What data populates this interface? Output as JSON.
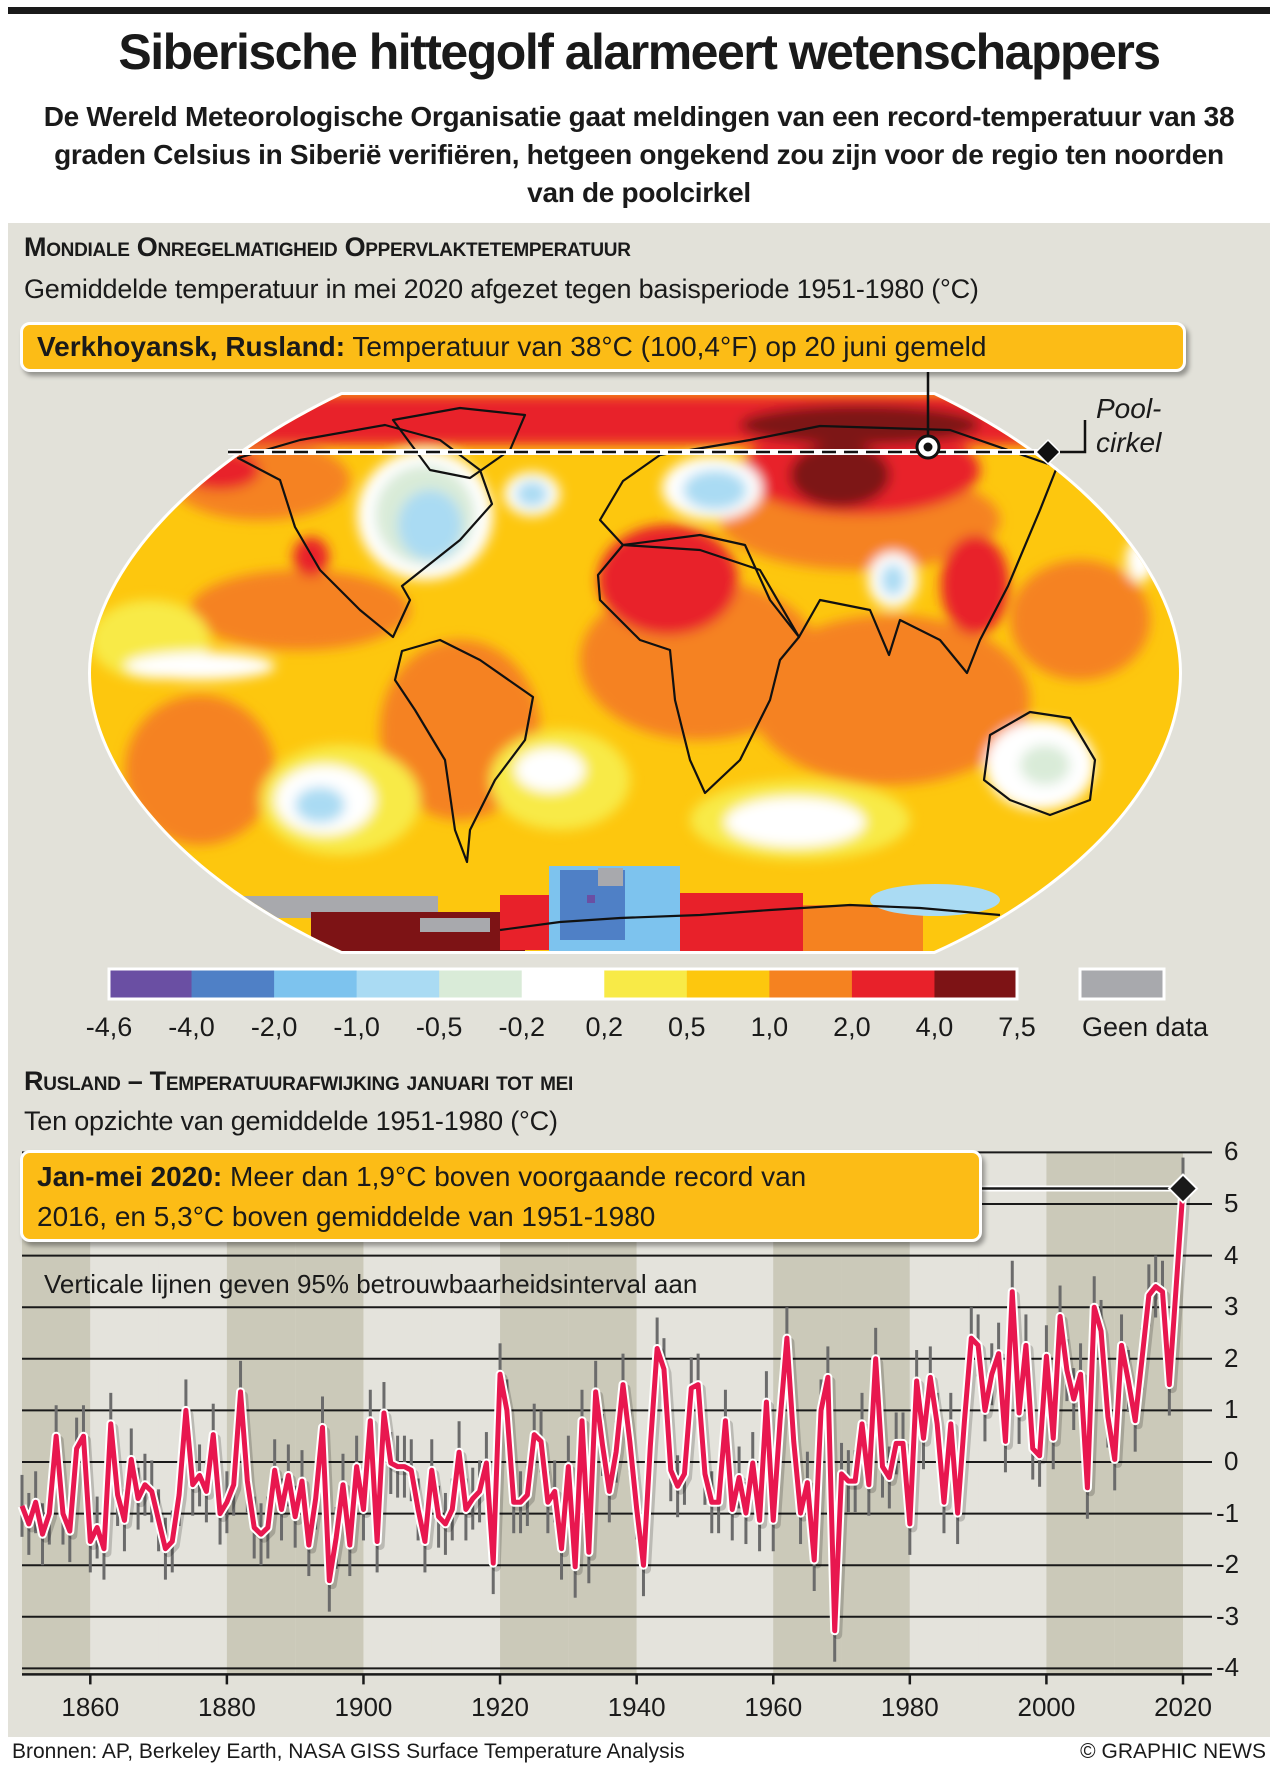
{
  "header": {
    "title": "Siberische hittegolf alarmeert wetenschappers",
    "subtitle": "De Wereld Meteorologische Organisatie gaat meldingen van een record-temperatuur van 38 graden Celsius in Siberië verifiëren, hetgeen ongekend zou zijn voor de regio ten noorden van de poolcirkel"
  },
  "map_section": {
    "heading": "Mondiale Onregelmatigheid Oppervlaktetemperatuur",
    "subheading": "Gemiddelde temperatuur in mei 2020 afgezet tegen basisperiode 1951-1980 (°C)",
    "callout_bold": "Verkhoyansk, Rusland:",
    "callout_text": " Temperatuur van 38°C (100,4°F) op 20 juni gemeld",
    "polar_label_1": "Pool-",
    "polar_label_2": "cirkel",
    "legend": {
      "boundaries": [
        "-4,6",
        "-4,0",
        "-2,0",
        "-1,0",
        "-0,5",
        "-0,2",
        "0,2",
        "0,5",
        "1,0",
        "2,0",
        "4,0",
        "7,5"
      ],
      "colors": [
        "#6a4fa3",
        "#4f80c6",
        "#7dc3ee",
        "#aadbf3",
        "#d9ebd8",
        "#ffffff",
        "#f8ea47",
        "#fdc70e",
        "#f58220",
        "#e8212a",
        "#7d1315"
      ],
      "no_data_color": "#a8a9ad",
      "no_data_label": "Geen data"
    }
  },
  "chart_section": {
    "heading": "Rusland – Temperatuurafwijking januari tot mei",
    "subheading": "Ten opzichte van gemiddelde 1951-1980 (°C)",
    "callout_bold": "Jan-mei 2020:",
    "callout_line1": " Meer dan 1,9°C boven voorgaande record van",
    "callout_line2": "2016, en 5,3°C boven gemiddelde van 1951-1980",
    "note": "Verticale lijnen geven 95% betrouwbaarheidsinterval aan"
  },
  "chart_data": {
    "type": "line",
    "title": "",
    "xlabel": "",
    "ylabel": "",
    "xlim": [
      1850,
      2020
    ],
    "ylim": [
      -4,
      6
    ],
    "x_ticks": [
      "1860",
      "1880",
      "1900",
      "1920",
      "1940",
      "1960",
      "1980",
      "2000",
      "2020"
    ],
    "y_ticks": [
      "6",
      "5",
      "4",
      "3",
      "2",
      "1",
      "0",
      "-1",
      "-2",
      "-3",
      "-4"
    ],
    "grid": true,
    "line_color": "#e8174f",
    "ci_95_halfwidth": 0.6,
    "highlight": {
      "x": 2020,
      "y": 5.3
    },
    "points": [
      [
        1850,
        -0.85
      ],
      [
        1851,
        -1.2
      ],
      [
        1852,
        -0.78
      ],
      [
        1853,
        -1.4
      ],
      [
        1854,
        -1.0
      ],
      [
        1855,
        0.5
      ],
      [
        1856,
        -1.0
      ],
      [
        1857,
        -1.34
      ],
      [
        1858,
        0.26
      ],
      [
        1859,
        0.5
      ],
      [
        1860,
        -1.54
      ],
      [
        1861,
        -1.27
      ],
      [
        1862,
        -1.68
      ],
      [
        1863,
        0.74
      ],
      [
        1864,
        -0.64
      ],
      [
        1865,
        -1.13
      ],
      [
        1866,
        0.05
      ],
      [
        1867,
        -0.71
      ],
      [
        1868,
        -0.44
      ],
      [
        1869,
        -0.57
      ],
      [
        1870,
        -1.13
      ],
      [
        1871,
        -1.68
      ],
      [
        1872,
        -1.54
      ],
      [
        1873,
        -0.64
      ],
      [
        1874,
        1.0
      ],
      [
        1875,
        -0.44
      ],
      [
        1876,
        -0.26
      ],
      [
        1877,
        -0.57
      ],
      [
        1878,
        0.53
      ],
      [
        1879,
        -1.0
      ],
      [
        1880,
        -0.78
      ],
      [
        1881,
        -0.44
      ],
      [
        1882,
        1.36
      ],
      [
        1883,
        -0.37
      ],
      [
        1884,
        -1.27
      ],
      [
        1885,
        -1.4
      ],
      [
        1886,
        -1.27
      ],
      [
        1887,
        -0.16
      ],
      [
        1888,
        -0.92
      ],
      [
        1889,
        -0.26
      ],
      [
        1890,
        -1.06
      ],
      [
        1891,
        -0.37
      ],
      [
        1892,
        -1.61
      ],
      [
        1893,
        -0.71
      ],
      [
        1894,
        0.67
      ],
      [
        1895,
        -2.3
      ],
      [
        1896,
        -1.47
      ],
      [
        1897,
        -0.44
      ],
      [
        1898,
        -1.61
      ],
      [
        1899,
        -0.09
      ],
      [
        1900,
        -0.92
      ],
      [
        1901,
        0.8
      ],
      [
        1902,
        -1.54
      ],
      [
        1903,
        0.95
      ],
      [
        1904,
        -0.02
      ],
      [
        1905,
        -0.09
      ],
      [
        1906,
        -0.09
      ],
      [
        1907,
        -0.16
      ],
      [
        1908,
        -0.92
      ],
      [
        1909,
        -1.54
      ],
      [
        1910,
        -0.16
      ],
      [
        1911,
        -1.06
      ],
      [
        1912,
        -1.2
      ],
      [
        1913,
        -0.92
      ],
      [
        1914,
        0.19
      ],
      [
        1915,
        -0.92
      ],
      [
        1916,
        -0.71
      ],
      [
        1917,
        -0.57
      ],
      [
        1918,
        -0.02
      ],
      [
        1919,
        -1.96
      ],
      [
        1920,
        1.7
      ],
      [
        1921,
        1.0
      ],
      [
        1922,
        -0.78
      ],
      [
        1923,
        -0.78
      ],
      [
        1924,
        -0.64
      ],
      [
        1925,
        0.53
      ],
      [
        1926,
        0.4
      ],
      [
        1927,
        -0.78
      ],
      [
        1928,
        -0.57
      ],
      [
        1929,
        -1.68
      ],
      [
        1930,
        -0.09
      ],
      [
        1931,
        -2.03
      ],
      [
        1932,
        0.8
      ],
      [
        1933,
        -1.75
      ],
      [
        1934,
        1.36
      ],
      [
        1935,
        0.33
      ],
      [
        1936,
        -0.57
      ],
      [
        1937,
        0.2
      ],
      [
        1938,
        1.5
      ],
      [
        1939,
        0.4
      ],
      [
        1940,
        -0.9
      ],
      [
        1941,
        -2.0
      ],
      [
        1942,
        0.3
      ],
      [
        1943,
        2.2
      ],
      [
        1944,
        1.8
      ],
      [
        1945,
        -0.16
      ],
      [
        1946,
        -0.47
      ],
      [
        1947,
        -0.23
      ],
      [
        1948,
        1.43
      ],
      [
        1949,
        1.5
      ],
      [
        1950,
        -0.23
      ],
      [
        1951,
        -0.78
      ],
      [
        1952,
        -0.78
      ],
      [
        1953,
        0.8
      ],
      [
        1954,
        -0.92
      ],
      [
        1955,
        -0.3
      ],
      [
        1956,
        -0.99
      ],
      [
        1957,
        -0.02
      ],
      [
        1958,
        -1.13
      ],
      [
        1959,
        1.16
      ],
      [
        1960,
        -1.13
      ],
      [
        1961,
        0.8
      ],
      [
        1962,
        2.4
      ],
      [
        1963,
        0.4
      ],
      [
        1964,
        -0.99
      ],
      [
        1965,
        -0.4
      ],
      [
        1966,
        -1.9
      ],
      [
        1967,
        1.0
      ],
      [
        1968,
        1.64
      ],
      [
        1969,
        -3.27
      ],
      [
        1970,
        -0.23
      ],
      [
        1971,
        -0.37
      ],
      [
        1972,
        -0.37
      ],
      [
        1973,
        0.74
      ],
      [
        1974,
        -0.44
      ],
      [
        1975,
        2.0
      ],
      [
        1976,
        -0.09
      ],
      [
        1977,
        -0.3
      ],
      [
        1978,
        0.36
      ],
      [
        1979,
        0.36
      ],
      [
        1980,
        -1.2
      ],
      [
        1981,
        1.57
      ],
      [
        1982,
        0.46
      ],
      [
        1983,
        1.64
      ],
      [
        1984,
        0.74
      ],
      [
        1985,
        -0.78
      ],
      [
        1986,
        0.74
      ],
      [
        1987,
        -0.99
      ],
      [
        1988,
        0.8
      ],
      [
        1989,
        2.4
      ],
      [
        1990,
        2.26
      ],
      [
        1991,
        1.0
      ],
      [
        1992,
        1.7
      ],
      [
        1993,
        2.1
      ],
      [
        1994,
        0.4
      ],
      [
        1995,
        3.3
      ],
      [
        1996,
        0.95
      ],
      [
        1997,
        2.26
      ],
      [
        1998,
        0.26
      ],
      [
        1999,
        0.12
      ],
      [
        2000,
        2.05
      ],
      [
        2001,
        0.46
      ],
      [
        2002,
        2.82
      ],
      [
        2003,
        1.78
      ],
      [
        2004,
        1.22
      ],
      [
        2005,
        1.7
      ],
      [
        2006,
        -0.5
      ],
      [
        2007,
        3.0
      ],
      [
        2008,
        2.54
      ],
      [
        2009,
        0.88
      ],
      [
        2010,
        0.05
      ],
      [
        2011,
        2.26
      ],
      [
        2012,
        1.57
      ],
      [
        2013,
        0.8
      ],
      [
        2014,
        2.0
      ],
      [
        2015,
        3.23
      ],
      [
        2016,
        3.4
      ],
      [
        2017,
        3.3
      ],
      [
        2018,
        1.5
      ],
      [
        2019,
        3.4
      ],
      [
        2020,
        5.3
      ]
    ]
  },
  "footer": {
    "sources": "Bronnen: AP, Berkeley Earth, NASA GISS Surface Temperature Analysis",
    "credit": "© GRAPHIC NEWS"
  }
}
